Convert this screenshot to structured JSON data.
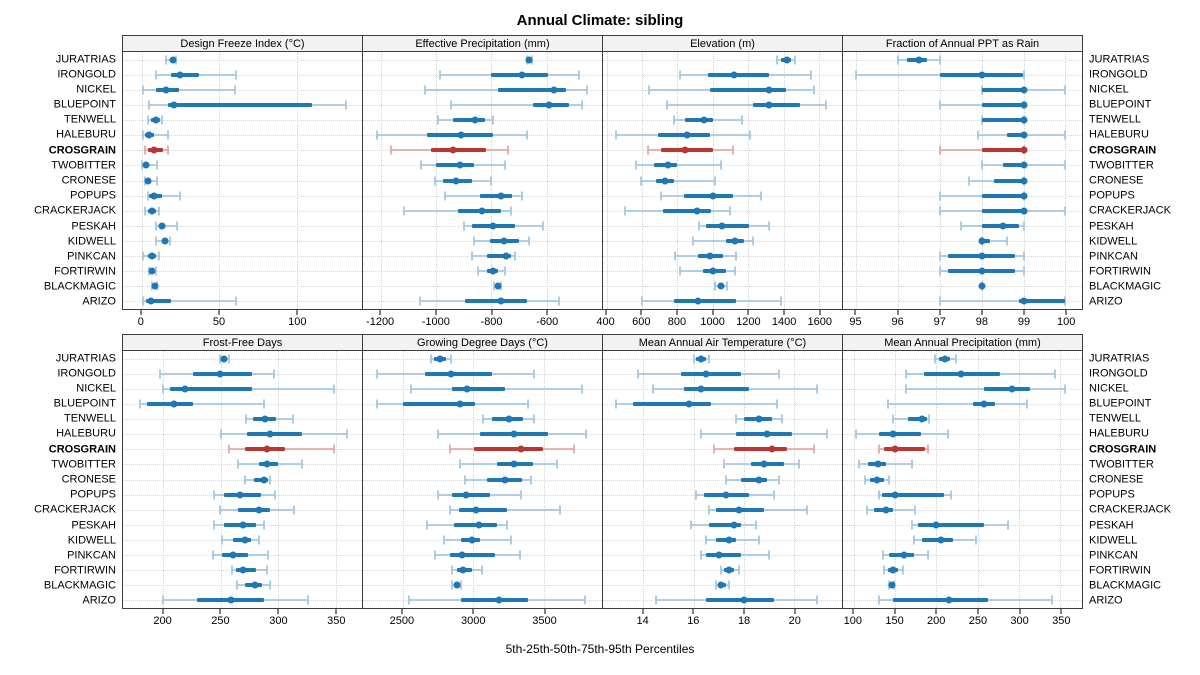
{
  "title": "Annual Climate: sibling",
  "xlabel": "5th-25th-50th-75th-95th Percentiles",
  "highlight_site": "CROSGRAIN",
  "sites": [
    "JURATRIAS",
    "IRONGOLD",
    "NICKEL",
    "BLUEPOINT",
    "TENWELL",
    "HALEBURU",
    "CROSGRAIN",
    "TWOBITTER",
    "CRONESE",
    "POPUPS",
    "CRACKERJACK",
    "PESKAH",
    "KIDWELL",
    "PINKCAN",
    "FORTIRWIN",
    "BLACKMAGIC",
    "ARIZO"
  ],
  "colors": {
    "blue": "#1f77b4",
    "blue_light": "#a3c8e0",
    "red": "#b93733",
    "red_light": "#e2a9a6",
    "strip_bg": "#f2f2f2",
    "border": "#3c3c3c",
    "grid": "#d2d2d2"
  },
  "chart_data": {
    "type": "dotplot",
    "percentiles": [
      5,
      25,
      50,
      75,
      95
    ],
    "legend_note": "each row shows 5th-25th-50th-75th-95th percentile whisker-box-dot",
    "panels": [
      {
        "title": "Design Freeze Index (°C)",
        "xlim": [
          -12,
          142
        ],
        "ticks": [
          0,
          50,
          100
        ],
        "values": [
          [
            16,
            18,
            20,
            21,
            22
          ],
          [
            9,
            19,
            25,
            37,
            61
          ],
          [
            1,
            9,
            16,
            24,
            60
          ],
          [
            5,
            17,
            21,
            110,
            132
          ],
          [
            4,
            6,
            9,
            12,
            13
          ],
          [
            1,
            2,
            5,
            8,
            17
          ],
          [
            2,
            4,
            8,
            14,
            17
          ],
          [
            0,
            1,
            3,
            5,
            10
          ],
          [
            2,
            3,
            4,
            6,
            10
          ],
          [
            4,
            5,
            8,
            13,
            25
          ],
          [
            2,
            4,
            7,
            9,
            11
          ],
          [
            9,
            11,
            13,
            15,
            23
          ],
          [
            9,
            13,
            15,
            17,
            18
          ],
          [
            1,
            4,
            7,
            9,
            11
          ],
          [
            5,
            6,
            7,
            8,
            9
          ],
          [
            7,
            8,
            8.5,
            9,
            10
          ],
          [
            1,
            3,
            6,
            19,
            61
          ]
        ]
      },
      {
        "title": "Effective Precipitation (mm)",
        "xlim": [
          -1265,
          -400
        ],
        "ticks": [
          -1200,
          -1000,
          -800,
          -600
        ],
        "values": [
          [
            -670,
            -667,
            -663,
            -658,
            -653
          ],
          [
            -987,
            -800,
            -688,
            -595,
            -483
          ],
          [
            -1040,
            -775,
            -574,
            -529,
            -454
          ],
          [
            -948,
            -650,
            -592,
            -519,
            -471
          ],
          [
            -995,
            -938,
            -860,
            -825,
            -795
          ],
          [
            -1215,
            -1035,
            -910,
            -795,
            -670
          ],
          [
            -1165,
            -1020,
            -940,
            -820,
            -740
          ],
          [
            -1055,
            -1000,
            -915,
            -865,
            -750
          ],
          [
            -1005,
            -975,
            -930,
            -870,
            -800
          ],
          [
            -970,
            -840,
            -765,
            -725,
            -690
          ],
          [
            -1115,
            -920,
            -835,
            -765,
            -730
          ],
          [
            -900,
            -870,
            -795,
            -715,
            -615
          ],
          [
            -865,
            -805,
            -755,
            -700,
            -665
          ],
          [
            -870,
            -818,
            -748,
            -730,
            -715
          ],
          [
            -848,
            -818,
            -794,
            -776,
            -752
          ],
          [
            -790,
            -782,
            -776,
            -770,
            -764
          ],
          [
            -1060,
            -895,
            -765,
            -670,
            -555
          ]
        ]
      },
      {
        "title": "Elevation (m)",
        "xlim": [
          380,
          1730
        ],
        "ticks": [
          400,
          600,
          800,
          1000,
          1200,
          1400,
          1600
        ],
        "values": [
          [
            1365,
            1385,
            1420,
            1440,
            1465
          ],
          [
            815,
            975,
            1120,
            1315,
            1555
          ],
          [
            640,
            985,
            1315,
            1415,
            1570
          ],
          [
            740,
            1225,
            1320,
            1490,
            1640
          ],
          [
            780,
            845,
            950,
            1000,
            1165
          ],
          [
            455,
            690,
            855,
            985,
            1210
          ],
          [
            635,
            710,
            845,
            1000,
            1115
          ],
          [
            565,
            670,
            745,
            800,
            1045
          ],
          [
            595,
            680,
            730,
            780,
            1010
          ],
          [
            710,
            835,
            1000,
            1115,
            1270
          ],
          [
            505,
            720,
            910,
            990,
            1100
          ],
          [
            920,
            960,
            1050,
            1205,
            1315
          ],
          [
            890,
            1075,
            1125,
            1175,
            1230
          ],
          [
            785,
            915,
            985,
            1060,
            1130
          ],
          [
            815,
            945,
            1000,
            1075,
            1125
          ],
          [
            1015,
            1030,
            1045,
            1062,
            1078
          ],
          [
            600,
            780,
            915,
            1130,
            1385
          ]
        ]
      },
      {
        "title": "Fraction of Annual PPT as Rain",
        "xlim": [
          94.68,
          100.4
        ],
        "ticks": [
          95,
          96,
          97,
          98,
          99,
          100
        ],
        "values": [
          [
            96,
            96.2,
            96.5,
            96.7,
            97
          ],
          [
            95,
            97,
            98,
            99,
            99
          ],
          [
            98,
            98,
            99,
            99,
            100
          ],
          [
            97,
            98,
            99,
            99,
            99
          ],
          [
            98,
            98,
            99,
            99,
            99
          ],
          [
            97.9,
            98.6,
            99,
            99,
            100
          ],
          [
            97,
            98,
            99,
            99,
            99
          ],
          [
            98,
            98.5,
            99,
            99,
            100
          ],
          [
            97.7,
            98.3,
            99,
            99,
            99
          ],
          [
            97,
            98,
            99,
            99,
            99
          ],
          [
            97,
            98,
            99,
            99,
            100
          ],
          [
            97.5,
            98,
            98.5,
            98.9,
            99
          ],
          [
            98,
            98,
            98,
            98.2,
            98.6
          ],
          [
            97,
            97.2,
            98,
            98.8,
            99
          ],
          [
            97,
            97.2,
            98,
            98.8,
            99
          ],
          [
            98,
            98,
            98,
            98,
            98
          ],
          [
            97,
            98.9,
            99,
            100,
            100
          ]
        ]
      },
      {
        "title": "Frost-Free Days",
        "xlim": [
          165,
          373
        ],
        "ticks": [
          200,
          250,
          300,
          350
        ],
        "values": [
          [
            249,
            251,
            253,
            255,
            257
          ],
          [
            197,
            226,
            249,
            277,
            296
          ],
          [
            200,
            206,
            219,
            277,
            349
          ],
          [
            180,
            186,
            209,
            226,
            288
          ],
          [
            272,
            278,
            289,
            298,
            313
          ],
          [
            250,
            273,
            293,
            321,
            360
          ],
          [
            257,
            271,
            290,
            306,
            349
          ],
          [
            265,
            283,
            290,
            300,
            321
          ],
          [
            271,
            279,
            288,
            291,
            293
          ],
          [
            244,
            253,
            267,
            285,
            297
          ],
          [
            249,
            265,
            283,
            293,
            314
          ],
          [
            244,
            253,
            269,
            281,
            288
          ],
          [
            251,
            261,
            271,
            276,
            283
          ],
          [
            243,
            251,
            261,
            274,
            291
          ],
          [
            260,
            263,
            269,
            281,
            290
          ],
          [
            264,
            271,
            280,
            286,
            293
          ],
          [
            200,
            229,
            259,
            288,
            326
          ]
        ]
      },
      {
        "title": "Growing Degree Days (°C)",
        "xlim": [
          2220,
          3910
        ],
        "ticks": [
          2500,
          3000,
          3500
        ],
        "values": [
          [
            2700,
            2720,
            2765,
            2810,
            2845
          ],
          [
            2320,
            2655,
            2845,
            3130,
            3430
          ],
          [
            2560,
            2850,
            2955,
            3225,
            3770
          ],
          [
            2320,
            2505,
            2905,
            3010,
            3390
          ],
          [
            3065,
            3135,
            3250,
            3350,
            3430
          ],
          [
            2750,
            3045,
            3290,
            3525,
            3800
          ],
          [
            2835,
            3005,
            3335,
            3490,
            3715
          ],
          [
            2905,
            3165,
            3285,
            3420,
            3595
          ],
          [
            2940,
            3100,
            3225,
            3345,
            3410
          ],
          [
            2750,
            2850,
            2945,
            3120,
            3335
          ],
          [
            2835,
            2900,
            3020,
            3240,
            3615
          ],
          [
            2675,
            2860,
            3040,
            3165,
            3235
          ],
          [
            2790,
            2915,
            2990,
            3050,
            3265
          ],
          [
            2730,
            2835,
            2920,
            3155,
            3330
          ],
          [
            2850,
            2885,
            2930,
            2990,
            3060
          ],
          [
            2850,
            2865,
            2885,
            2900,
            2915
          ],
          [
            2545,
            2915,
            3185,
            3390,
            3790
          ]
        ]
      },
      {
        "title": "Mean Annual Air Temperature (°C)",
        "xlim": [
          12.4,
          21.9
        ],
        "ticks": [
          14,
          16,
          18,
          20
        ],
        "values": [
          [
            16.0,
            16.1,
            16.3,
            16.5,
            16.6
          ],
          [
            13.8,
            15.5,
            16.5,
            17.9,
            19.4
          ],
          [
            14.4,
            15.6,
            16.3,
            18.2,
            20.9
          ],
          [
            12.9,
            13.6,
            15.8,
            16.7,
            19.3
          ],
          [
            17.7,
            18.0,
            18.6,
            19.1,
            19.5
          ],
          [
            16.3,
            17.7,
            18.9,
            19.9,
            21.3
          ],
          [
            16.8,
            17.6,
            19.1,
            19.7,
            20.8
          ],
          [
            17.2,
            18.3,
            18.8,
            19.6,
            20.2
          ],
          [
            17.3,
            17.9,
            18.6,
            18.9,
            19.4
          ],
          [
            16.1,
            16.4,
            17.3,
            18.2,
            19.2
          ],
          [
            16.6,
            16.9,
            17.8,
            18.8,
            20.5
          ],
          [
            15.9,
            16.6,
            17.6,
            17.9,
            18.5
          ],
          [
            16.5,
            16.9,
            17.4,
            17.7,
            18.6
          ],
          [
            16.3,
            16.5,
            17.0,
            17.9,
            19.0
          ],
          [
            17.1,
            17.2,
            17.4,
            17.6,
            17.8
          ],
          [
            16.9,
            17.0,
            17.1,
            17.3,
            17.4
          ],
          [
            14.5,
            16.5,
            18.0,
            19.2,
            20.9
          ]
        ]
      },
      {
        "title": "Mean Annual Precipitation (mm)",
        "xlim": [
          87,
          376
        ],
        "ticks": [
          100,
          150,
          200,
          250,
          300,
          350
        ],
        "values": [
          [
            198,
            203,
            210,
            217,
            224
          ],
          [
            163,
            185,
            230,
            277,
            343
          ],
          [
            163,
            258,
            291,
            313,
            356
          ],
          [
            141,
            244,
            257,
            271,
            309
          ],
          [
            148,
            166,
            182,
            188,
            191
          ],
          [
            103,
            130,
            148,
            181,
            214
          ],
          [
            130,
            136,
            150,
            186,
            190
          ],
          [
            106,
            117,
            129,
            139,
            170
          ],
          [
            114,
            120,
            128,
            136,
            143
          ],
          [
            130,
            134,
            150,
            209,
            218
          ],
          [
            116,
            125,
            139,
            148,
            174
          ],
          [
            171,
            178,
            199,
            258,
            286
          ],
          [
            173,
            183,
            206,
            220,
            248
          ],
          [
            135,
            143,
            161,
            173,
            190
          ],
          [
            137,
            141,
            147,
            153,
            160
          ],
          [
            143,
            145,
            146,
            148,
            149
          ],
          [
            130,
            147,
            215,
            262,
            340
          ]
        ]
      }
    ]
  }
}
